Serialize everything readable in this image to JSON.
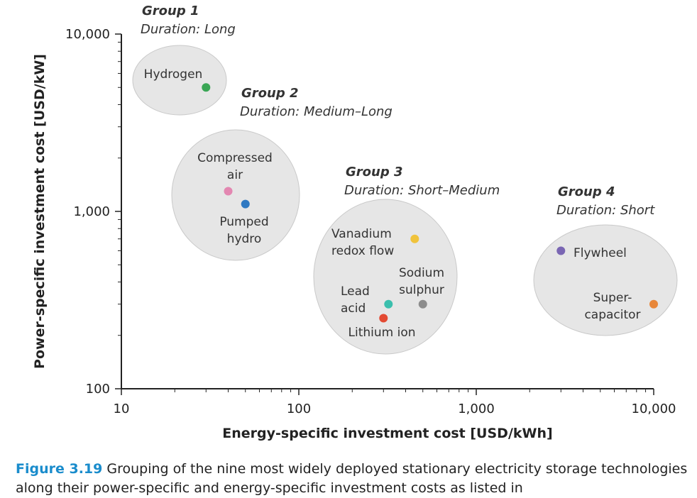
{
  "chart_data": {
    "type": "scatter",
    "x_scale": "log",
    "y_scale": "log",
    "xlim": [
      10,
      10000
    ],
    "ylim": [
      100,
      10000
    ],
    "xlabel": "Energy-specific investment cost [USD/kWh]",
    "ylabel": "Power-specific investment cost [USD/kW]",
    "x_ticks": [
      10,
      100,
      1000,
      10000
    ],
    "x_tick_labels": [
      "10",
      "100",
      "1,000",
      "10,000"
    ],
    "y_ticks": [
      100,
      1000,
      10000
    ],
    "y_tick_labels": [
      "100",
      "1,000",
      "10,000"
    ],
    "points": [
      {
        "name": "hydrogen",
        "label_lines": [
          "Hydrogen"
        ],
        "x": 30,
        "y": 5000,
        "color": "#3aa655",
        "group": 1
      },
      {
        "name": "compressed-air",
        "label_lines": [
          "Compressed",
          "air"
        ],
        "x": 40,
        "y": 1300,
        "color": "#e387b1",
        "group": 2
      },
      {
        "name": "pumped-hydro",
        "label_lines": [
          "Pumped",
          "hydro"
        ],
        "x": 50,
        "y": 1100,
        "color": "#2f79c2",
        "group": 2
      },
      {
        "name": "vanadium-redox-flow",
        "label_lines": [
          "Vanadium",
          "redox flow"
        ],
        "x": 450,
        "y": 700,
        "color": "#f0c33c",
        "group": 3
      },
      {
        "name": "sodium-sulphur",
        "label_lines": [
          "Sodium",
          "sulphur"
        ],
        "x": 500,
        "y": 300,
        "color": "#8c8c8c",
        "group": 3
      },
      {
        "name": "lead-acid",
        "label_lines": [
          "Lead",
          "acid"
        ],
        "x": 320,
        "y": 300,
        "color": "#3bbfad",
        "group": 3
      },
      {
        "name": "lithium-ion",
        "label_lines": [
          "Lithium ion"
        ],
        "x": 300,
        "y": 250,
        "color": "#e34a33",
        "group": 3
      },
      {
        "name": "flywheel",
        "label_lines": [
          "Flywheel"
        ],
        "x": 3000,
        "y": 600,
        "color": "#7a66b3",
        "group": 4
      },
      {
        "name": "supercapacitor",
        "label_lines": [
          "Super-",
          "capacitor"
        ],
        "x": 10000,
        "y": 300,
        "color": "#e8873a",
        "group": 4
      }
    ],
    "groups": [
      {
        "id": 1,
        "name": "Group 1",
        "duration": "Duration: Long"
      },
      {
        "id": 2,
        "name": "Group 2",
        "duration": "Duration: Medium–Long"
      },
      {
        "id": 3,
        "name": "Group 3",
        "duration": "Duration: Short–Medium"
      },
      {
        "id": 4,
        "name": "Group 4",
        "duration": "Duration: Short"
      }
    ],
    "grid": false,
    "legend": "none"
  },
  "caption": {
    "figure_label": "Figure 3.19",
    "text": "Grouping of the nine most widely deployed stationary electricity storage technologies along their power-specific and energy-specific investment costs as listed in"
  }
}
